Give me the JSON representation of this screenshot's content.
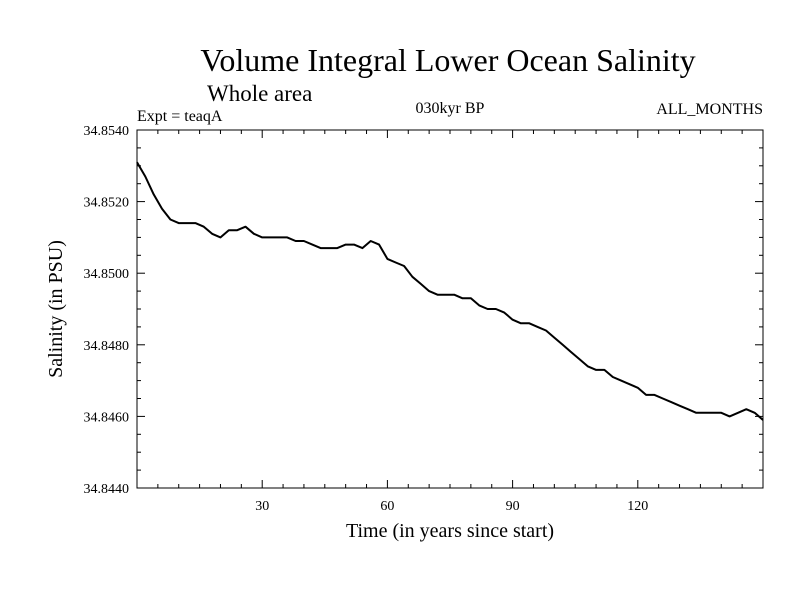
{
  "chart_data": {
    "type": "line",
    "title": "Volume Integral Lower Ocean Salinity",
    "subtitle": "Whole area",
    "annotations": {
      "left": "Expt = teaqA",
      "center": "030kyr BP",
      "right": "ALL_MONTHS"
    },
    "xlabel": "Time (in years since start)",
    "ylabel": "Salinity (in PSU)",
    "xlim": [
      0,
      150
    ],
    "ylim": [
      34.844,
      34.854
    ],
    "xticks": [
      30,
      60,
      90,
      120
    ],
    "xtick_labels": [
      "30",
      "60",
      "90",
      "120"
    ],
    "yticks": [
      34.844,
      34.846,
      34.848,
      34.85,
      34.852,
      34.854
    ],
    "ytick_labels": [
      "34.8440",
      "34.8460",
      "34.8480",
      "34.8500",
      "34.8520",
      "34.8540"
    ],
    "grid": false,
    "series": [
      {
        "name": "salinity",
        "color": "#000000",
        "x": [
          0,
          2,
          4,
          6,
          8,
          10,
          12,
          14,
          16,
          18,
          20,
          22,
          24,
          26,
          28,
          30,
          32,
          34,
          36,
          38,
          40,
          42,
          44,
          46,
          48,
          50,
          52,
          54,
          56,
          58,
          60,
          62,
          64,
          66,
          68,
          70,
          72,
          74,
          76,
          78,
          80,
          82,
          84,
          86,
          88,
          90,
          92,
          94,
          96,
          98,
          100,
          102,
          104,
          106,
          108,
          110,
          112,
          114,
          116,
          118,
          120,
          122,
          124,
          126,
          128,
          130,
          132,
          134,
          136,
          138,
          140,
          142,
          144,
          146,
          148,
          150
        ],
        "values": [
          34.8531,
          34.8527,
          34.8522,
          34.8518,
          34.8515,
          34.8514,
          34.8514,
          34.8514,
          34.8513,
          34.8511,
          34.851,
          34.8512,
          34.8512,
          34.8513,
          34.8511,
          34.851,
          34.851,
          34.851,
          34.851,
          34.8509,
          34.8509,
          34.8508,
          34.8507,
          34.8507,
          34.8507,
          34.8508,
          34.8508,
          34.8507,
          34.8509,
          34.8508,
          34.8504,
          34.8503,
          34.8502,
          34.8499,
          34.8497,
          34.8495,
          34.8494,
          34.8494,
          34.8494,
          34.8493,
          34.8493,
          34.8491,
          34.849,
          34.849,
          34.8489,
          34.8487,
          34.8486,
          34.8486,
          34.8485,
          34.8484,
          34.8482,
          34.848,
          34.8478,
          34.8476,
          34.8474,
          34.8473,
          34.8473,
          34.8471,
          34.847,
          34.8469,
          34.8468,
          34.8466,
          34.8466,
          34.8465,
          34.8464,
          34.8463,
          34.8462,
          34.8461,
          34.8461,
          34.8461,
          34.8461,
          34.846,
          34.8461,
          34.8462,
          34.8461,
          34.8459
        ]
      }
    ]
  }
}
